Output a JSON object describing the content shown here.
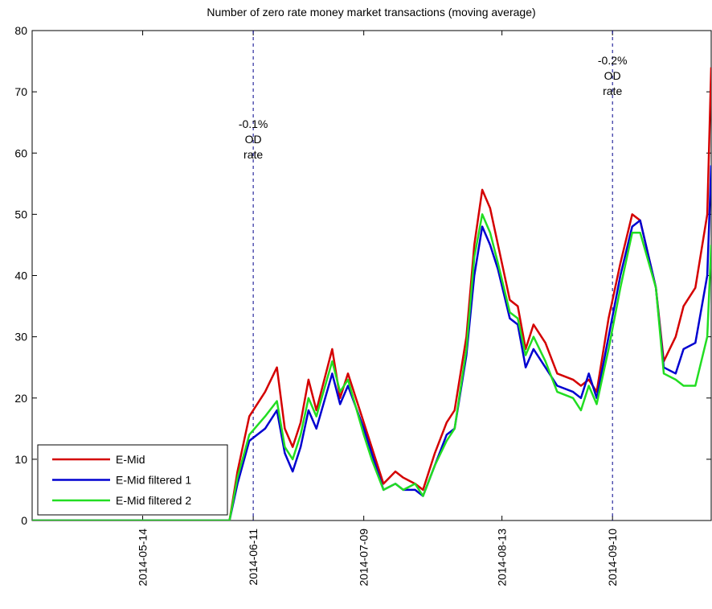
{
  "chart_data": {
    "type": "line",
    "title": "Number of zero rate money market transactions (moving average)",
    "x": [
      "2014-04-16",
      "2014-06-05",
      "2014-06-07",
      "2014-06-10",
      "2014-06-14",
      "2014-06-17",
      "2014-06-19",
      "2014-06-21",
      "2014-06-23",
      "2014-06-25",
      "2014-06-27",
      "2014-07-01",
      "2014-07-03",
      "2014-07-05",
      "2014-07-09",
      "2014-07-11",
      "2014-07-14",
      "2014-07-17",
      "2014-07-19",
      "2014-07-22",
      "2014-07-24",
      "2014-07-27",
      "2014-07-30",
      "2014-08-01",
      "2014-08-04",
      "2014-08-06",
      "2014-08-08",
      "2014-08-10",
      "2014-08-12",
      "2014-08-15",
      "2014-08-17",
      "2014-08-19",
      "2014-08-21",
      "2014-08-24",
      "2014-08-27",
      "2014-08-31",
      "2014-09-02",
      "2014-09-04",
      "2014-09-06",
      "2014-09-09",
      "2014-09-12",
      "2014-09-15",
      "2014-09-17",
      "2014-09-21",
      "2014-09-23",
      "2014-09-26",
      "2014-09-28",
      "2014-10-01",
      "2014-10-04",
      "2014-10-05"
    ],
    "series": [
      {
        "name": "E-Mid",
        "color": "#d40000",
        "values": [
          0,
          0,
          8,
          17,
          21,
          25,
          15,
          12,
          16,
          23,
          18,
          28,
          20,
          24,
          16,
          12,
          6,
          8,
          7,
          6,
          5,
          11,
          16,
          18,
          30,
          45,
          54,
          51,
          45,
          36,
          35,
          28,
          32,
          29,
          24,
          23,
          22,
          23,
          21,
          33,
          42,
          50,
          49,
          38,
          26,
          30,
          35,
          38,
          50,
          74
        ]
      },
      {
        "name": "E-Mid filtered 1",
        "color": "#0000d0",
        "values": [
          0,
          0,
          6,
          13,
          15,
          18,
          11,
          8,
          12,
          18,
          15,
          24,
          19,
          22,
          15,
          11,
          5,
          6,
          5,
          5,
          4,
          9,
          14,
          15,
          27,
          40,
          48,
          45,
          41,
          33,
          32,
          25,
          28,
          25,
          22,
          21,
          20,
          24,
          20,
          30,
          40,
          48,
          49,
          38,
          25,
          24,
          28,
          29,
          40,
          58
        ]
      },
      {
        "name": "E-Mid filtered 2",
        "color": "#22dd22",
        "values": [
          0,
          0,
          7,
          14,
          17,
          19.5,
          12,
          10,
          14,
          20,
          17,
          26,
          21,
          23,
          14,
          10,
          5,
          6,
          5,
          6,
          4,
          9,
          13,
          15,
          28,
          43,
          50,
          47,
          42,
          34,
          33,
          27,
          30,
          26,
          21,
          20,
          18,
          22,
          19,
          28,
          38,
          47,
          47,
          38,
          24,
          23,
          22,
          22,
          30,
          45
        ]
      }
    ],
    "xlim": [
      "2014-04-16",
      "2014-10-05"
    ],
    "xticks": [
      "2014-05-14",
      "2014-06-11",
      "2014-07-09",
      "2014-08-13",
      "2014-09-10"
    ],
    "ylim": [
      0,
      80
    ],
    "yticks": [
      0,
      10,
      20,
      30,
      40,
      50,
      60,
      70,
      80
    ],
    "legend": "lower left",
    "annotations": [
      {
        "x": "2014-06-11",
        "text": [
          "-0.1%",
          "OD",
          "rate"
        ]
      },
      {
        "x": "2014-09-10",
        "text": [
          "-0.2%",
          "OD",
          "rate"
        ]
      }
    ]
  }
}
